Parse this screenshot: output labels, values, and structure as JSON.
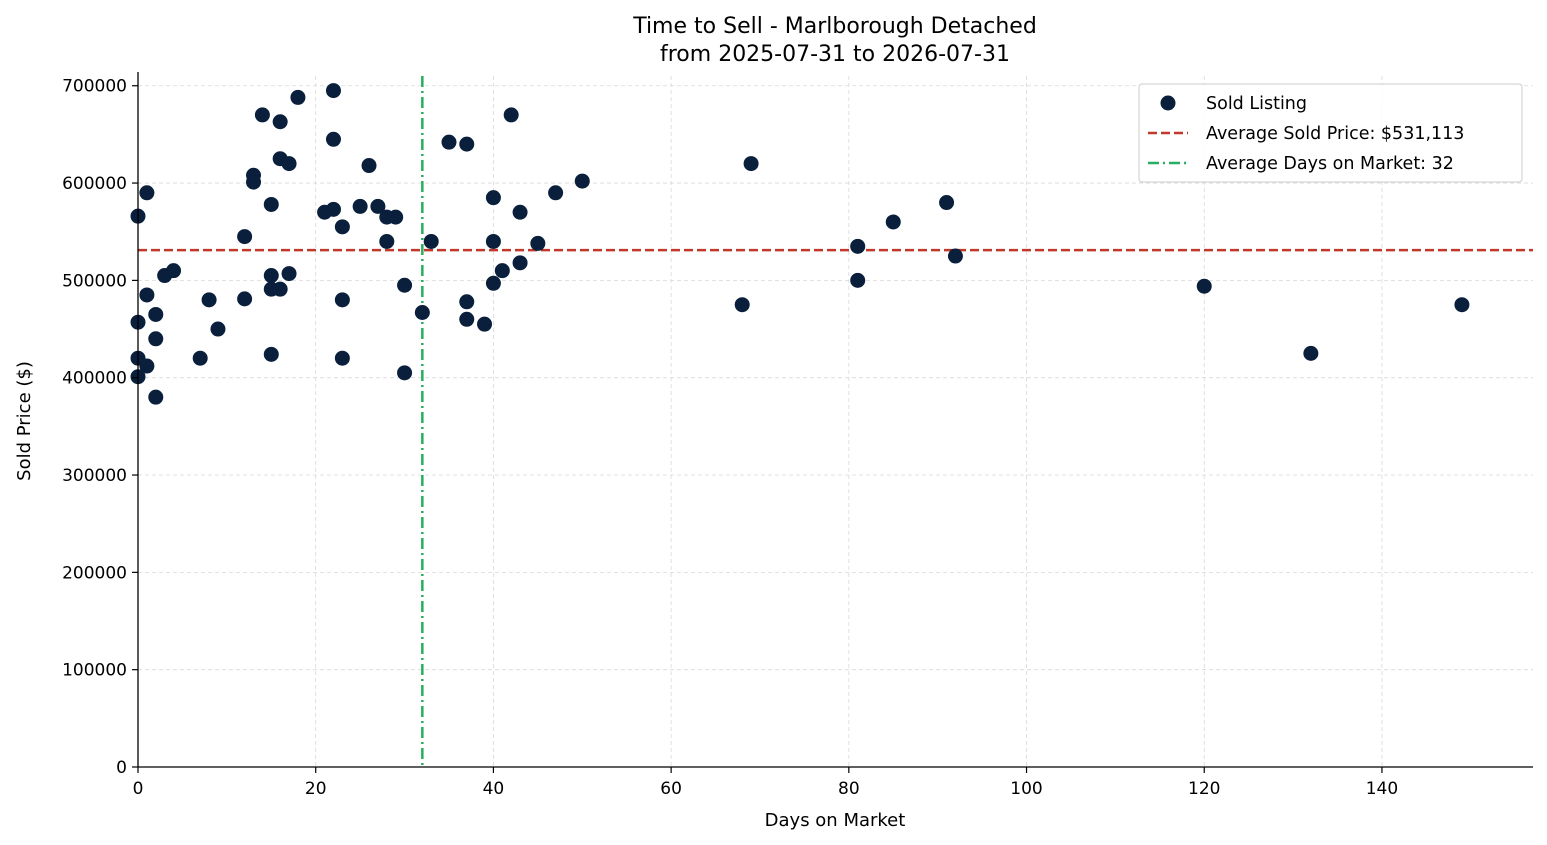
{
  "chart_data": {
    "type": "scatter",
    "title": "Time to Sell - Marlborough Detached",
    "subtitle": "from 2025-07-31 to 2026-07-31",
    "xlabel": "Days on Market",
    "ylabel": "Sold Price ($)",
    "xlim": [
      0,
      157
    ],
    "ylim": [
      0,
      710000
    ],
    "x_ticks": [
      0,
      20,
      40,
      60,
      80,
      100,
      120,
      140
    ],
    "y_ticks": [
      0,
      100000,
      200000,
      300000,
      400000,
      500000,
      600000,
      700000
    ],
    "grid": true,
    "legend_position": "top-right",
    "colors": {
      "points": "#0a1f3c",
      "average_price": "#c0392b",
      "average_days": "#27ae60",
      "grid": "#d9d9d9"
    },
    "series": [
      {
        "name": "Sold Listing",
        "points": [
          [
            0,
            566000
          ],
          [
            0,
            457000
          ],
          [
            0,
            420000
          ],
          [
            0,
            401000
          ],
          [
            1,
            590000
          ],
          [
            1,
            485000
          ],
          [
            1,
            412000
          ],
          [
            2,
            465000
          ],
          [
            2,
            440000
          ],
          [
            2,
            380000
          ],
          [
            3,
            505000
          ],
          [
            4,
            510000
          ],
          [
            7,
            420000
          ],
          [
            8,
            480000
          ],
          [
            9,
            450000
          ],
          [
            12,
            545000
          ],
          [
            12,
            481000
          ],
          [
            13,
            608000
          ],
          [
            13,
            601000
          ],
          [
            14,
            670000
          ],
          [
            15,
            578000
          ],
          [
            15,
            505000
          ],
          [
            15,
            491000
          ],
          [
            15,
            424000
          ],
          [
            16,
            663000
          ],
          [
            16,
            625000
          ],
          [
            16,
            491000
          ],
          [
            17,
            620000
          ],
          [
            17,
            507000
          ],
          [
            18,
            688000
          ],
          [
            21,
            570000
          ],
          [
            22,
            695000
          ],
          [
            22,
            645000
          ],
          [
            22,
            573000
          ],
          [
            23,
            555000
          ],
          [
            23,
            480000
          ],
          [
            23,
            420000
          ],
          [
            25,
            576000
          ],
          [
            26,
            618000
          ],
          [
            27,
            576000
          ],
          [
            28,
            565000
          ],
          [
            28,
            540000
          ],
          [
            29,
            565000
          ],
          [
            30,
            495000
          ],
          [
            30,
            405000
          ],
          [
            32,
            467000
          ],
          [
            33,
            540000
          ],
          [
            35,
            642000
          ],
          [
            37,
            640000
          ],
          [
            37,
            478000
          ],
          [
            37,
            460000
          ],
          [
            39,
            455000
          ],
          [
            40,
            585000
          ],
          [
            40,
            540000
          ],
          [
            40,
            497000
          ],
          [
            41,
            510000
          ],
          [
            42,
            670000
          ],
          [
            43,
            570000
          ],
          [
            43,
            518000
          ],
          [
            45,
            538000
          ],
          [
            47,
            590000
          ],
          [
            50,
            602000
          ],
          [
            68,
            475000
          ],
          [
            69,
            620000
          ],
          [
            81,
            535000
          ],
          [
            81,
            500000
          ],
          [
            85,
            560000
          ],
          [
            91,
            580000
          ],
          [
            92,
            525000
          ],
          [
            120,
            494000
          ],
          [
            132,
            425000
          ],
          [
            149,
            475000
          ]
        ]
      }
    ],
    "reference_lines": {
      "average_price": {
        "name": "Average Sold Price: $531,113",
        "value": 531113
      },
      "average_days": {
        "name": "Average Days on Market: 32",
        "value": 32
      }
    }
  }
}
